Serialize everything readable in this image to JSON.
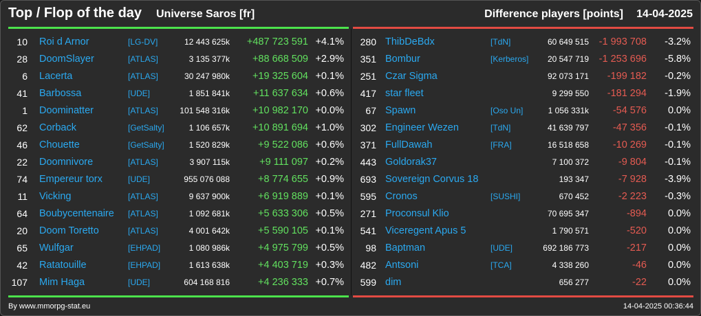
{
  "header": {
    "title": "Top / Flop of the day",
    "universe": "Universe Saros [fr]",
    "metric": "Difference players [points]",
    "date": "14-04-2025"
  },
  "colors": {
    "top": "#4ce34c",
    "flop": "#e34b43",
    "name": "#2ba9f0",
    "gain": "#62e15f",
    "loss": "#e55b52"
  },
  "top": [
    {
      "rank": "10",
      "name": "Roi d Arnor",
      "tag": "[LG-DV]",
      "total": "12 443 625k",
      "diff": "+487 723 591",
      "pct": "+4.1%"
    },
    {
      "rank": "28",
      "name": "DoomSlayer",
      "tag": "[ATLAS]",
      "total": "3 135 377k",
      "diff": "+88 668 509",
      "pct": "+2.9%"
    },
    {
      "rank": "6",
      "name": "Lacerta",
      "tag": "[ATLAS]",
      "total": "30 247 980k",
      "diff": "+19 325 604",
      "pct": "+0.1%"
    },
    {
      "rank": "41",
      "name": "Barbossa",
      "tag": "[UDE]",
      "total": "1 851 841k",
      "diff": "+11 637 634",
      "pct": "+0.6%"
    },
    {
      "rank": "1",
      "name": "Doominatter",
      "tag": "[ATLAS]",
      "total": "101 548 316k",
      "diff": "+10 982 170",
      "pct": "+0.0%"
    },
    {
      "rank": "62",
      "name": "Corback",
      "tag": "[GetSalty]",
      "total": "1 106 657k",
      "diff": "+10 891 694",
      "pct": "+1.0%"
    },
    {
      "rank": "46",
      "name": "Chouette",
      "tag": "[GetSalty]",
      "total": "1 520 829k",
      "diff": "+9 522 086",
      "pct": "+0.6%"
    },
    {
      "rank": "22",
      "name": "Doomnivore",
      "tag": "[ATLAS]",
      "total": "3 907 115k",
      "diff": "+9 111 097",
      "pct": "+0.2%"
    },
    {
      "rank": "74",
      "name": "Empereur torx",
      "tag": "[UDE]",
      "total": "955 076 088",
      "diff": "+8 774 655",
      "pct": "+0.9%"
    },
    {
      "rank": "11",
      "name": "Vicking",
      "tag": "[ATLAS]",
      "total": "9 637 900k",
      "diff": "+6 919 889",
      "pct": "+0.1%"
    },
    {
      "rank": "64",
      "name": "Boubycentenaire",
      "tag": "[ATLAS]",
      "total": "1 092 681k",
      "diff": "+5 633 306",
      "pct": "+0.5%"
    },
    {
      "rank": "20",
      "name": "Doom Toretto",
      "tag": "[ATLAS]",
      "total": "4 001 642k",
      "diff": "+5 590 105",
      "pct": "+0.1%"
    },
    {
      "rank": "65",
      "name": "Wulfgar",
      "tag": "[EHPAD]",
      "total": "1 080 986k",
      "diff": "+4 975 799",
      "pct": "+0.5%"
    },
    {
      "rank": "42",
      "name": "Ratatouille",
      "tag": "[EHPAD]",
      "total": "1 613 638k",
      "diff": "+4 403 719",
      "pct": "+0.3%"
    },
    {
      "rank": "107",
      "name": "Mim Haga",
      "tag": "[UDE]",
      "total": "604 168 816",
      "diff": "+4 236 333",
      "pct": "+0.7%"
    }
  ],
  "flop": [
    {
      "rank": "280",
      "name": "ThibDeBdx",
      "tag": "[TdN]",
      "total": "60 649 515",
      "diff": "-1 993 708",
      "pct": "-3.2%"
    },
    {
      "rank": "351",
      "name": "Bombur",
      "tag": "[Kerberos]",
      "total": "20 547 719",
      "diff": "-1 253 696",
      "pct": "-5.8%"
    },
    {
      "rank": "251",
      "name": "Czar Sigma",
      "tag": "",
      "total": "92 073 171",
      "diff": "-199 182",
      "pct": "-0.2%"
    },
    {
      "rank": "417",
      "name": "star fleet",
      "tag": "",
      "total": "9 299 550",
      "diff": "-181 294",
      "pct": "-1.9%"
    },
    {
      "rank": "67",
      "name": "Spawn",
      "tag": "[Oso Un]",
      "total": "1 056 331k",
      "diff": "-54 576",
      "pct": "0.0%"
    },
    {
      "rank": "302",
      "name": "Engineer Wezen",
      "tag": "[TdN]",
      "total": "41 639 797",
      "diff": "-47 356",
      "pct": "-0.1%"
    },
    {
      "rank": "371",
      "name": "FullDawah",
      "tag": "[FRA]",
      "total": "16 518 658",
      "diff": "-10 269",
      "pct": "-0.1%"
    },
    {
      "rank": "443",
      "name": "Goldorak37",
      "tag": "",
      "total": "7 100 372",
      "diff": "-9 804",
      "pct": "-0.1%"
    },
    {
      "rank": "693",
      "name": "Sovereign Corvus 18",
      "tag": "",
      "total": "193 347",
      "diff": "-7 928",
      "pct": "-3.9%"
    },
    {
      "rank": "595",
      "name": "Cronos",
      "tag": "[SUSHI]",
      "total": "670 452",
      "diff": "-2 223",
      "pct": "-0.3%"
    },
    {
      "rank": "271",
      "name": "Proconsul Klio",
      "tag": "",
      "total": "70 695 347",
      "diff": "-894",
      "pct": "0.0%"
    },
    {
      "rank": "541",
      "name": "Viceregent Apus 5",
      "tag": "",
      "total": "1 790 571",
      "diff": "-520",
      "pct": "0.0%"
    },
    {
      "rank": "98",
      "name": "Baptman",
      "tag": "[UDE]",
      "total": "692 186 773",
      "diff": "-217",
      "pct": "0.0%"
    },
    {
      "rank": "482",
      "name": "Antsoni",
      "tag": "[TCA]",
      "total": "4 338 260",
      "diff": "-46",
      "pct": "0.0%"
    },
    {
      "rank": "599",
      "name": "dim",
      "tag": "",
      "total": "656 277",
      "diff": "-22",
      "pct": "0.0%"
    }
  ],
  "footer": {
    "source": "By www.mmorpg-stat.eu",
    "timestamp": "14-04-2025 00:36:44"
  }
}
